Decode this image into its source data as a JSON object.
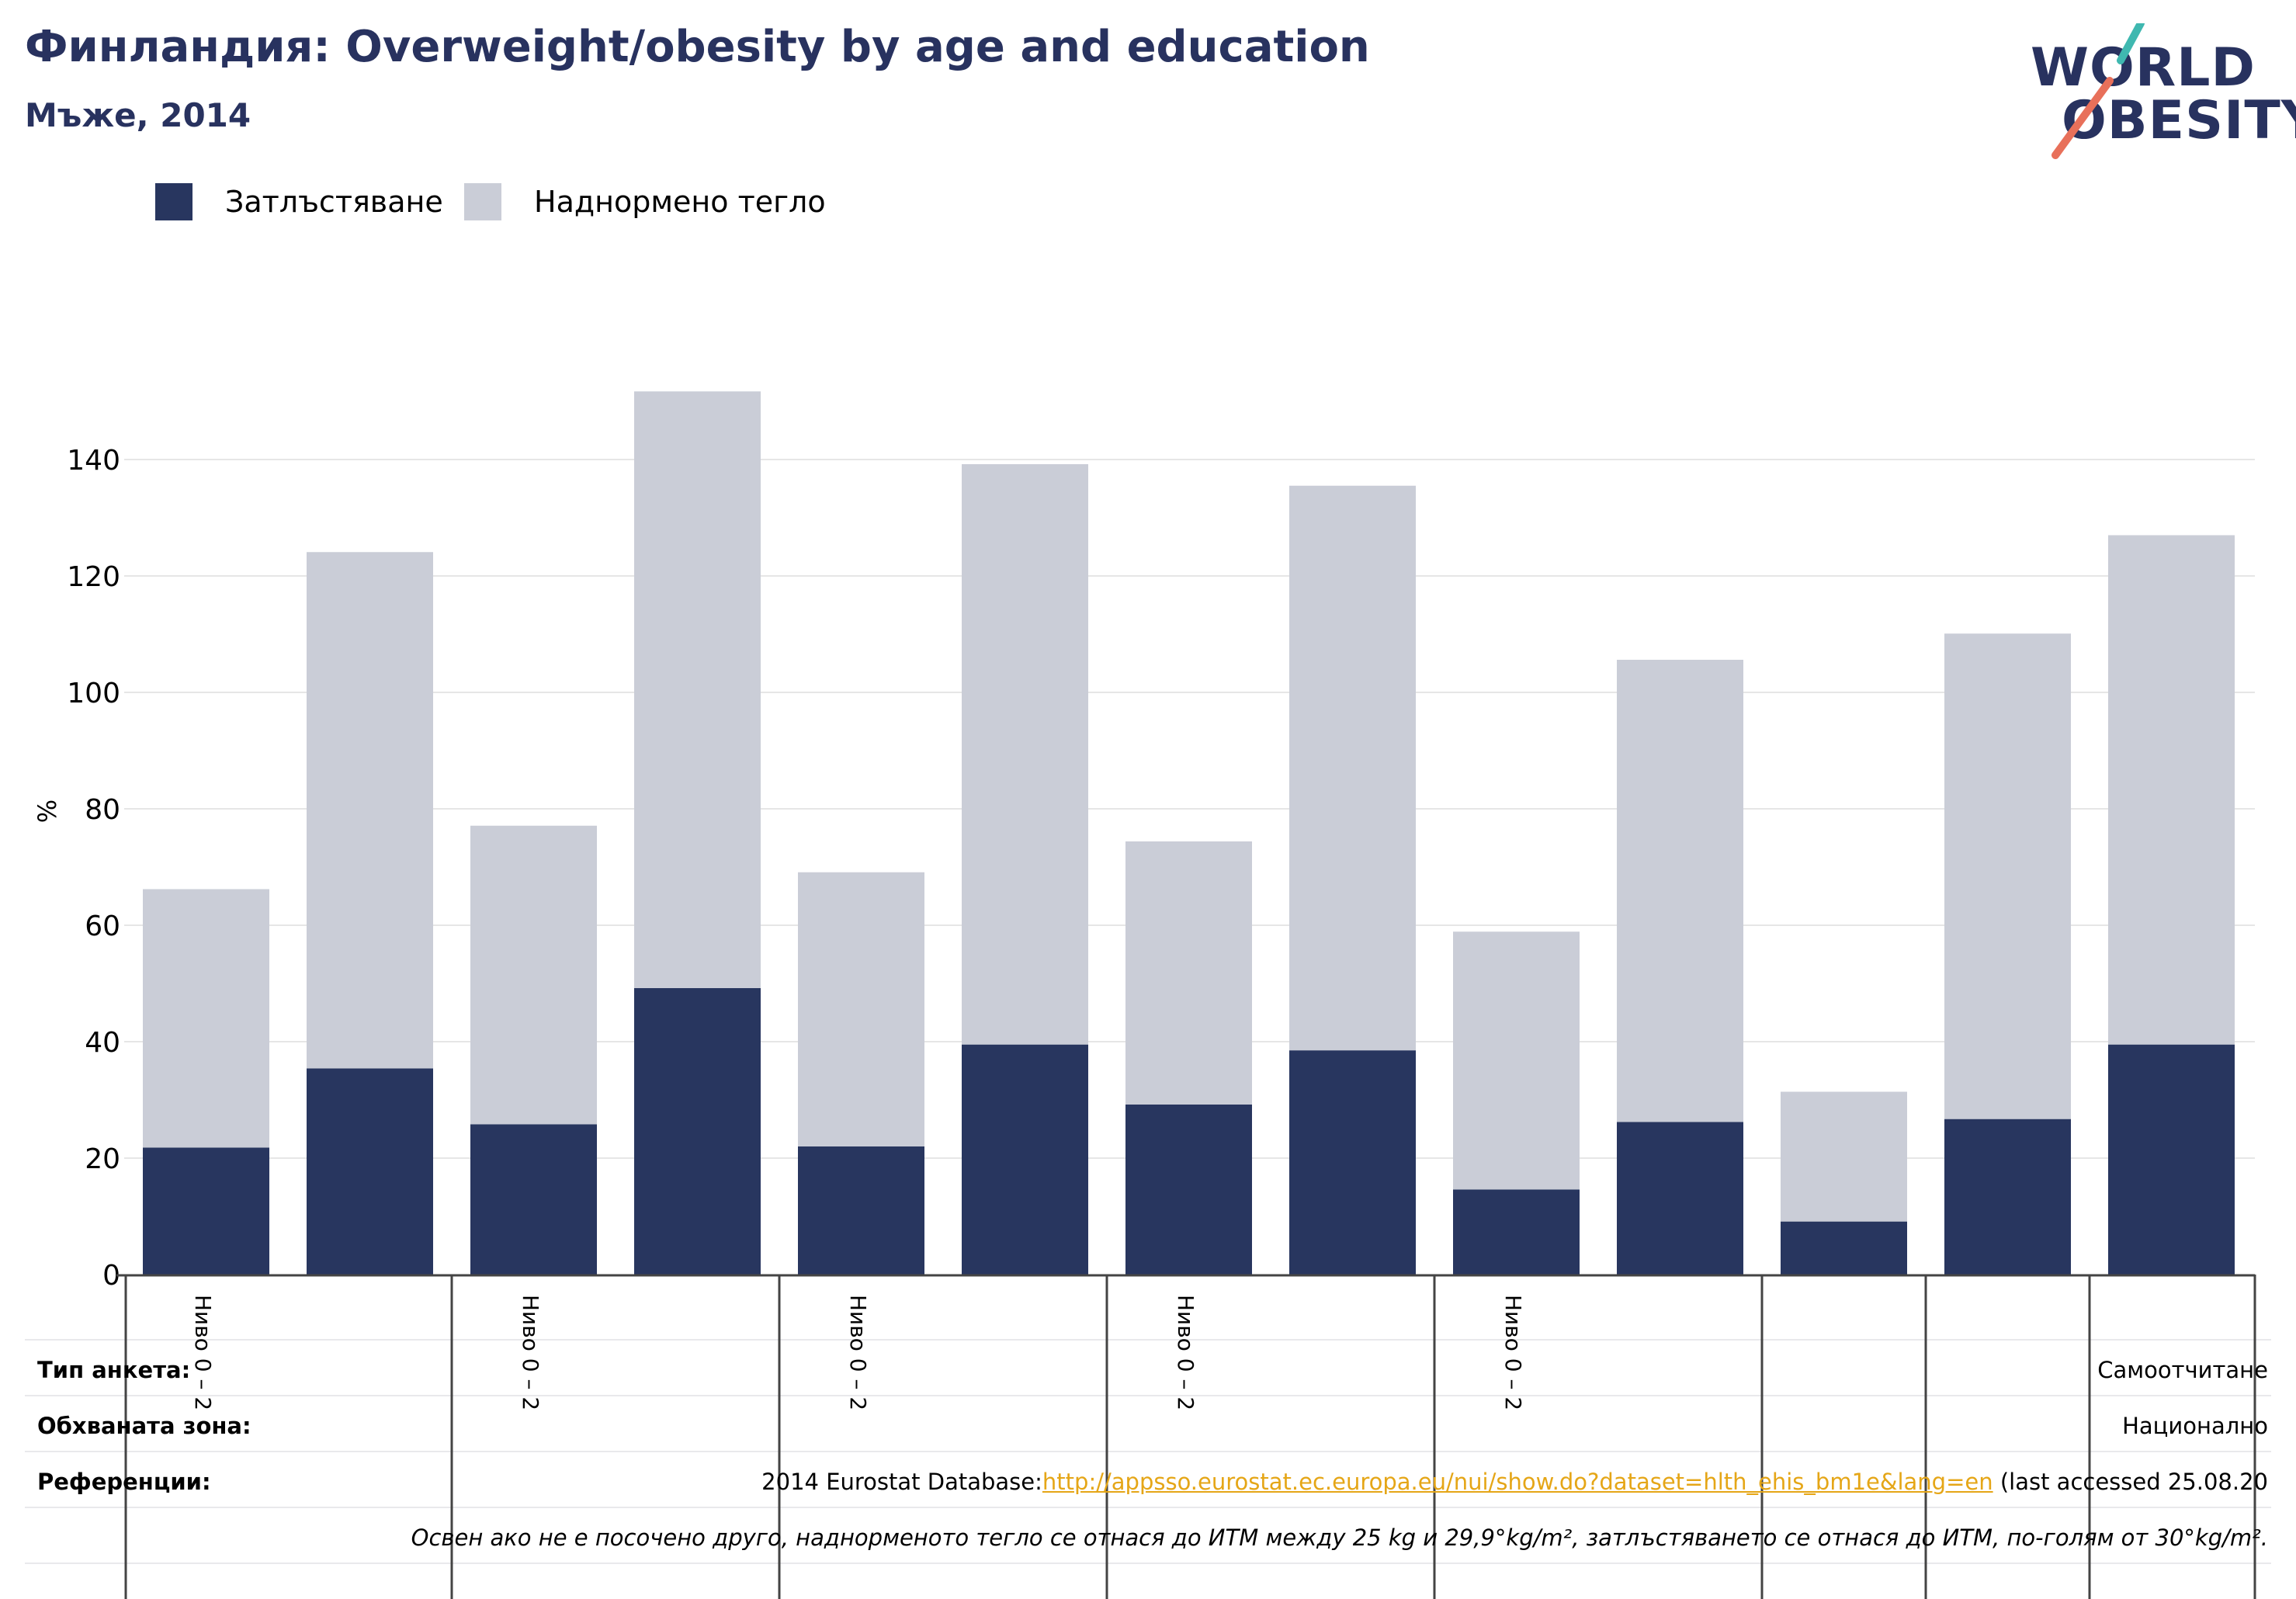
{
  "header": {
    "title": "Финландия: Overweight/obesity by age and education",
    "subtitle": "Мъже, 2014"
  },
  "logo": {
    "line1": "WORLD",
    "line2": "OBESITY",
    "colors": {
      "text": "#28325f",
      "slash_top": "#3fb8b0",
      "slash_bottom": "#e8705a"
    }
  },
  "legend": [
    {
      "label": "Затлъстяване",
      "color": "#28365f"
    },
    {
      "label": "Наднормено тегло",
      "color": "#cacdd7"
    }
  ],
  "chart_data": {
    "type": "bar",
    "stacked": true,
    "ylabel": "%",
    "ylim": [
      0,
      152
    ],
    "yticks": [
      0,
      20,
      40,
      60,
      80,
      100,
      120,
      140
    ],
    "grid": true,
    "legend_position": "top-left",
    "categories": [
      "Ниво 0 – 2",
      "",
      "Ниво 0 – 2",
      "",
      "Ниво 0 – 2",
      "",
      "Ниво 0 – 2",
      "",
      "Ниво 0 – 2",
      "",
      "",
      "",
      ""
    ],
    "series": [
      {
        "name": "Затлъстяване",
        "color": "#28365f",
        "values": [
          21.8,
          35.4,
          25.8,
          49.2,
          22.0,
          39.5,
          29.2,
          38.5,
          14.6,
          26.2,
          9.1,
          26.7,
          39.5
        ]
      },
      {
        "name": "Наднормено тегло",
        "color": "#cacdd7",
        "values": [
          44.4,
          88.7,
          51.3,
          102.5,
          47.1,
          99.7,
          45.2,
          97.0,
          44.3,
          79.4,
          22.3,
          83.4,
          87.5
        ]
      }
    ],
    "group_dividers_after": [
      1,
      3,
      5,
      7,
      9,
      10,
      11
    ]
  },
  "info": {
    "survey_label": "Тип анкета:",
    "survey_value": "Самоотчитане",
    "coverage_label": "Обхваната зона:",
    "coverage_value": "Национално",
    "refs_label": "Референции:",
    "refs_prefix": "2014 Eurostat Database:",
    "refs_link": "http://appsso.eurostat.ec.europa.eu/nui/show.do?dataset=hlth_ehis_bm1e&lang=en",
    "refs_suffix": " (last accessed 25.08.20",
    "note": "Освен ако не е посочено друго, наднорменото тегло се отнася до ИТМ между 25 kg и 29,9°kg/m², затлъстяването се отнася до ИТМ, по-голям от 30°kg/m²."
  }
}
